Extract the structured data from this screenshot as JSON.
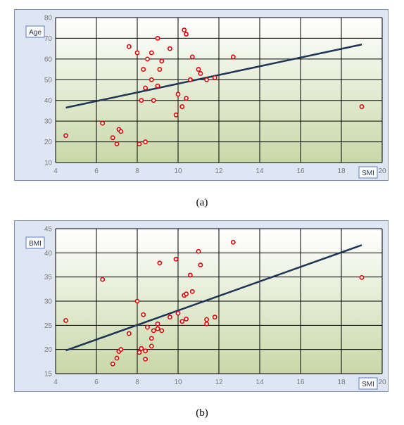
{
  "captions": [
    "(a)",
    "(b)"
  ],
  "colors": {
    "panel_bg": "#dde6f2",
    "plot_top": "#ffffff",
    "plot_bottom": "#c9d8a8",
    "grid": "#000000",
    "points": "#e00000",
    "trendline": "#1d3557",
    "label_box": "#5a7bbf"
  },
  "chart_data": [
    {
      "type": "scatter",
      "title": "",
      "xlabel": "SMI",
      "ylabel": "Age",
      "xlim": [
        4,
        20
      ],
      "ylim": [
        10,
        80
      ],
      "xticks": [
        4,
        6,
        8,
        10,
        12,
        14,
        16,
        18,
        20
      ],
      "yticks": [
        10,
        20,
        30,
        40,
        50,
        60,
        70,
        80
      ],
      "grid": true,
      "points": [
        [
          4.5,
          23
        ],
        [
          6.3,
          29
        ],
        [
          6.8,
          22
        ],
        [
          7.0,
          19
        ],
        [
          7.1,
          26
        ],
        [
          7.2,
          25
        ],
        [
          7.6,
          66
        ],
        [
          8.0,
          63
        ],
        [
          8.1,
          19
        ],
        [
          8.2,
          40
        ],
        [
          8.3,
          55
        ],
        [
          8.4,
          46
        ],
        [
          8.4,
          20
        ],
        [
          8.5,
          60
        ],
        [
          8.7,
          50
        ],
        [
          8.7,
          63
        ],
        [
          8.8,
          40
        ],
        [
          9.0,
          70
        ],
        [
          9.0,
          47
        ],
        [
          9.1,
          55
        ],
        [
          9.2,
          59
        ],
        [
          9.6,
          65
        ],
        [
          9.9,
          33
        ],
        [
          10.0,
          43
        ],
        [
          10.2,
          37
        ],
        [
          10.3,
          74
        ],
        [
          10.4,
          72
        ],
        [
          10.4,
          41
        ],
        [
          10.6,
          50
        ],
        [
          10.7,
          61
        ],
        [
          11.0,
          55
        ],
        [
          11.1,
          53
        ],
        [
          11.4,
          50
        ],
        [
          11.8,
          51
        ],
        [
          12.7,
          61
        ],
        [
          19.0,
          37
        ]
      ],
      "trendline": [
        [
          4.5,
          36.5
        ],
        [
          19.0,
          67
        ]
      ]
    },
    {
      "type": "scatter",
      "title": "",
      "xlabel": "SMI",
      "ylabel": "BMI",
      "xlim": [
        4,
        20
      ],
      "ylim": [
        15,
        45
      ],
      "xticks": [
        4,
        6,
        8,
        10,
        12,
        14,
        16,
        18,
        20
      ],
      "yticks": [
        15,
        20,
        25,
        30,
        35,
        40,
        45
      ],
      "grid": true,
      "points": [
        [
          4.5,
          26.0
        ],
        [
          6.3,
          34.5
        ],
        [
          6.8,
          17.0
        ],
        [
          7.0,
          18.2
        ],
        [
          7.1,
          19.6
        ],
        [
          7.2,
          20.0
        ],
        [
          7.6,
          23.3
        ],
        [
          8.0,
          30.0
        ],
        [
          8.1,
          19.4
        ],
        [
          8.2,
          20.2
        ],
        [
          8.3,
          27.2
        ],
        [
          8.4,
          18.0
        ],
        [
          8.4,
          19.7
        ],
        [
          8.5,
          24.6
        ],
        [
          8.7,
          20.7
        ],
        [
          8.7,
          22.3
        ],
        [
          8.8,
          23.9
        ],
        [
          9.0,
          24.3
        ],
        [
          9.0,
          25.3
        ],
        [
          9.1,
          37.9
        ],
        [
          9.2,
          23.9
        ],
        [
          9.6,
          26.7
        ],
        [
          9.9,
          38.7
        ],
        [
          10.0,
          27.5
        ],
        [
          10.2,
          25.8
        ],
        [
          10.3,
          31.2
        ],
        [
          10.4,
          31.5
        ],
        [
          10.4,
          26.3
        ],
        [
          10.6,
          35.4
        ],
        [
          10.7,
          32.0
        ],
        [
          11.0,
          40.3
        ],
        [
          11.1,
          37.5
        ],
        [
          11.4,
          26.2
        ],
        [
          11.4,
          25.3
        ],
        [
          11.8,
          26.7
        ],
        [
          12.7,
          42.2
        ],
        [
          19.0,
          34.9
        ]
      ],
      "trendline": [
        [
          4.5,
          19.8
        ],
        [
          19.0,
          41.6
        ]
      ]
    }
  ]
}
